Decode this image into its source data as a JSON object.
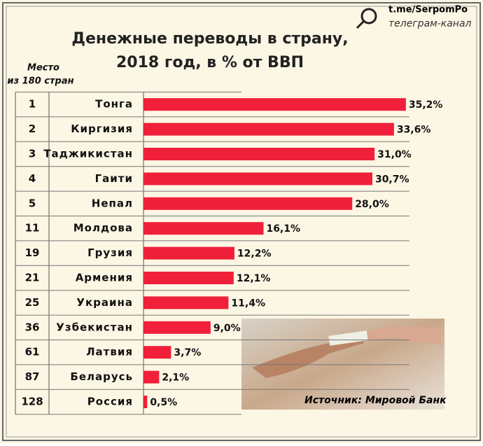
{
  "chart_data": {
    "type": "bar",
    "title": [
      "Денежные переводы в страну,",
      "2018 год, в % от ВВП"
    ],
    "rank_header": [
      "Место",
      "из 180 стран"
    ],
    "ranks": [
      1,
      2,
      3,
      4,
      5,
      11,
      19,
      21,
      25,
      36,
      61,
      87,
      128
    ],
    "categories": [
      "Тонга",
      "Киргизия",
      "Таджикистан",
      "Гаити",
      "Непал",
      "Молдова",
      "Грузия",
      "Армения",
      "Украина",
      "Узбекистан",
      "Латвия",
      "Беларусь",
      "Россия"
    ],
    "values": [
      35.2,
      33.6,
      31.0,
      30.7,
      28.0,
      16.1,
      12.2,
      12.1,
      11.4,
      9.0,
      3.7,
      2.1,
      0.5
    ],
    "value_labels": [
      "35,2%",
      "33,6%",
      "31,0%",
      "30,7%",
      "28,0%",
      "16,1%",
      "12,2%",
      "12,1%",
      "11,4%",
      "9,0%",
      "3,7%",
      "2,1%",
      "0,5%"
    ],
    "color": "#f0203a",
    "source": "Источник: Мировой Банк",
    "watermark": [
      "t.me/SerpomPo",
      "телеграм-канал"
    ]
  }
}
